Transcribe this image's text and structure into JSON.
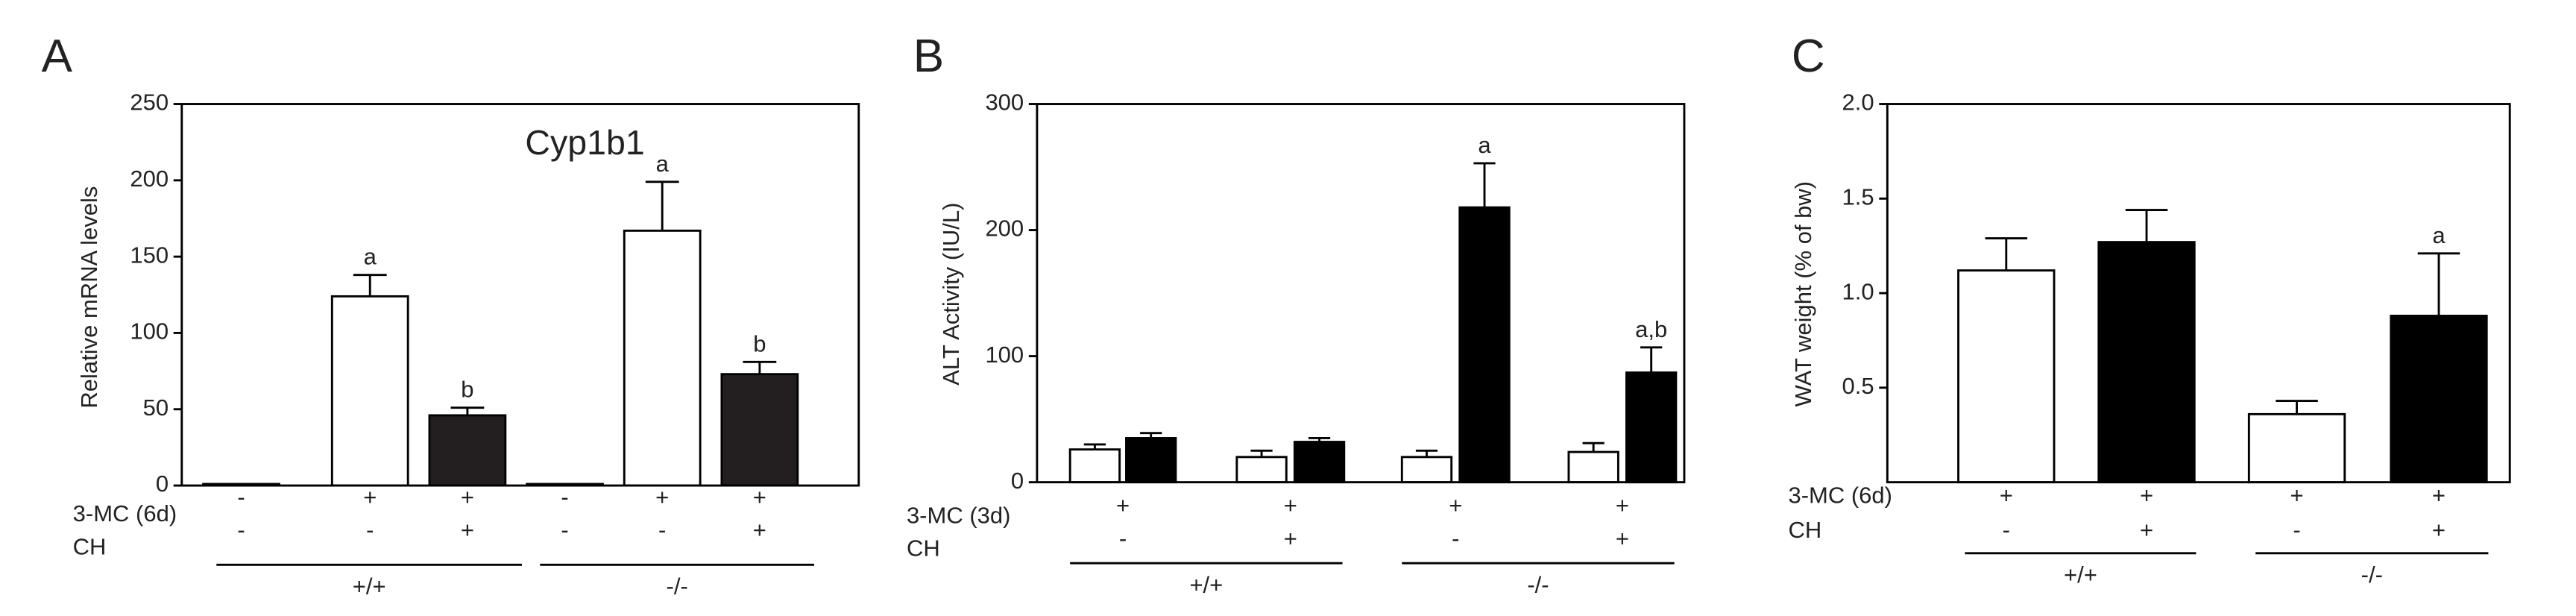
{
  "chart_data": [
    {
      "type": "bar",
      "panel": "A",
      "title": "Cyp1b1",
      "y_label": "Relative mRNA levels",
      "ylim": [
        0,
        250
      ],
      "yticks": [
        0,
        50,
        100,
        150,
        200,
        250
      ],
      "row_labels": [
        "3-MC (6d)",
        "CH"
      ],
      "groups": [
        {
          "label": "+/+",
          "categories": [
            {
              "signs": [
                "-",
                "-"
              ],
              "bars": [
                {
                  "value": 1,
                  "color": "#ffffff"
                }
              ]
            },
            {
              "signs": [
                "+",
                "-"
              ],
              "bars": [
                {
                  "value": 124,
                  "error": 14,
                  "color": "#ffffff",
                  "label": "a"
                }
              ]
            },
            {
              "signs": [
                "+",
                "+"
              ],
              "bars": [
                {
                  "value": 46,
                  "error": 5,
                  "color": "#231f20",
                  "label": "b"
                }
              ]
            }
          ]
        },
        {
          "label": "-/-",
          "categories": [
            {
              "signs": [
                "-",
                "-"
              ],
              "bars": [
                {
                  "value": 1,
                  "color": "#ffffff"
                }
              ]
            },
            {
              "signs": [
                "+",
                "-"
              ],
              "bars": [
                {
                  "value": 167,
                  "error": 32,
                  "color": "#ffffff",
                  "label": "a"
                }
              ]
            },
            {
              "signs": [
                "+",
                "+"
              ],
              "bars": [
                {
                  "value": 73,
                  "error": 8,
                  "color": "#231f20",
                  "label": "b"
                }
              ]
            }
          ]
        }
      ]
    },
    {
      "type": "bar",
      "panel": "B",
      "y_label": "ALT Activity (IU/L)",
      "ylim": [
        0,
        300
      ],
      "yticks": [
        0,
        100,
        200,
        300
      ],
      "row_labels": [
        "3-MC (3d)",
        "CH"
      ],
      "groups": [
        {
          "label": "+/+",
          "categories": [
            {
              "signs": [
                "+",
                "-"
              ],
              "bars": [
                {
                  "value": 26,
                  "error": 4,
                  "color": "#ffffff"
                },
                {
                  "value": 35,
                  "error": 4,
                  "color": "#000000"
                }
              ]
            },
            {
              "signs": [
                "+",
                "+"
              ],
              "bars": [
                {
                  "value": 20,
                  "error": 5,
                  "color": "#ffffff"
                },
                {
                  "value": 32,
                  "error": 3,
                  "color": "#000000"
                }
              ]
            }
          ]
        },
        {
          "label": "-/-",
          "categories": [
            {
              "signs": [
                "+",
                "-"
              ],
              "bars": [
                {
                  "value": 20,
                  "error": 5,
                  "color": "#ffffff"
                },
                {
                  "value": 218,
                  "error": 35,
                  "color": "#000000",
                  "label": "a"
                }
              ]
            },
            {
              "signs": [
                "+",
                "+"
              ],
              "bars": [
                {
                  "value": 24,
                  "error": 7,
                  "color": "#ffffff"
                },
                {
                  "value": 87,
                  "error": 20,
                  "color": "#000000",
                  "label": "a,b"
                }
              ]
            }
          ]
        }
      ]
    },
    {
      "type": "bar",
      "panel": "C",
      "y_label": "WAT weight (% of bw)",
      "ylim": [
        0,
        2
      ],
      "yticks": [
        0.5,
        {
          "value": 1,
          "label": "1.0"
        },
        1.5,
        {
          "value": 2,
          "label": "2.0"
        }
      ],
      "row_labels": [
        "3-MC (6d)",
        "CH"
      ],
      "groups": [
        {
          "label": "+/+",
          "categories": [
            {
              "signs": [
                "+",
                "-"
              ],
              "bars": [
                {
                  "value": 1.12,
                  "error": 0.17,
                  "color": "#ffffff"
                }
              ]
            },
            {
              "signs": [
                "+",
                "+"
              ],
              "bars": [
                {
                  "value": 1.27,
                  "error": 0.17,
                  "color": "#000000"
                }
              ]
            }
          ]
        },
        {
          "label": "-/-",
          "categories": [
            {
              "signs": [
                "+",
                "-"
              ],
              "bars": [
                {
                  "value": 0.36,
                  "error": 0.07,
                  "color": "#ffffff"
                }
              ]
            },
            {
              "signs": [
                "+",
                "+"
              ],
              "bars": [
                {
                  "value": 0.88,
                  "error": 0.33,
                  "color": "#000000",
                  "label": "a"
                }
              ]
            }
          ]
        }
      ]
    }
  ]
}
